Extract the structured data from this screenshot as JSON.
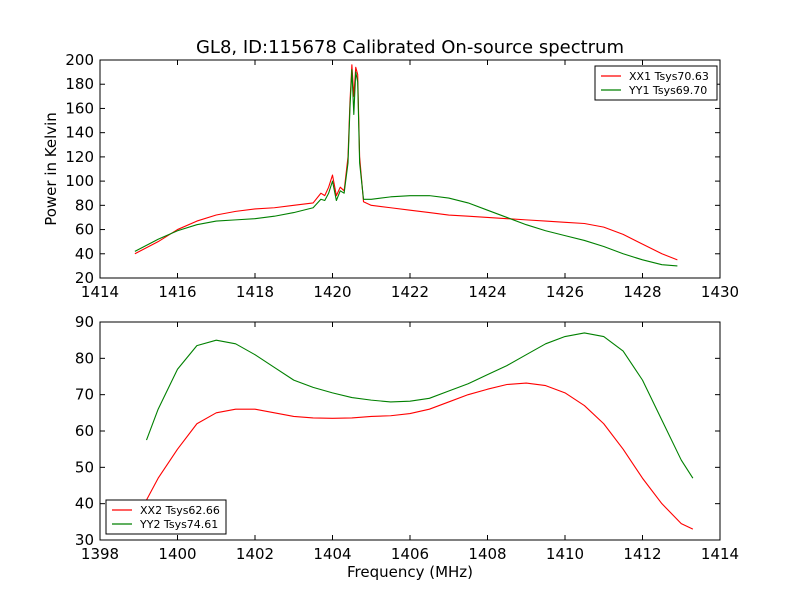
{
  "title": "GL8, ID:115678 Calibrated On-source spectrum",
  "chart_data": [
    {
      "type": "line",
      "title": "GL8, ID:115678 Calibrated On-source spectrum",
      "xlabel": "",
      "ylabel": "Power in Kelvin",
      "xlim": [
        1414,
        1430
      ],
      "ylim": [
        20,
        200
      ],
      "xticks": [
        1414,
        1416,
        1418,
        1420,
        1422,
        1424,
        1426,
        1428,
        1430
      ],
      "yticks": [
        20,
        40,
        60,
        80,
        100,
        120,
        140,
        160,
        180,
        200
      ],
      "grid": false,
      "legend_position": "top-right",
      "series": [
        {
          "name": "XX1 Tsys70.63",
          "color": "#ff0000",
          "x": [
            1414.9,
            1415.5,
            1416.0,
            1416.5,
            1417.0,
            1417.5,
            1418.0,
            1418.5,
            1419.0,
            1419.5,
            1419.7,
            1419.8,
            1419.9,
            1420.0,
            1420.1,
            1420.2,
            1420.3,
            1420.4,
            1420.45,
            1420.5,
            1420.55,
            1420.6,
            1420.65,
            1420.7,
            1420.8,
            1421.0,
            1421.5,
            1422.0,
            1422.5,
            1423.0,
            1423.5,
            1424.0,
            1424.5,
            1425.0,
            1425.5,
            1426.0,
            1426.5,
            1427.0,
            1427.5,
            1428.0,
            1428.5,
            1428.9
          ],
          "y": [
            40,
            50,
            60,
            67,
            72,
            75,
            77,
            78,
            80,
            82,
            90,
            88,
            95,
            105,
            88,
            95,
            92,
            120,
            165,
            196,
            170,
            194,
            188,
            120,
            83,
            80,
            78,
            76,
            74,
            72,
            71,
            70,
            69,
            68,
            67,
            66,
            65,
            62,
            56,
            48,
            40,
            35
          ]
        },
        {
          "name": "YY1 Tsys69.70",
          "color": "#008000",
          "x": [
            1414.9,
            1415.5,
            1416.0,
            1416.5,
            1417.0,
            1417.5,
            1418.0,
            1418.5,
            1419.0,
            1419.5,
            1419.7,
            1419.8,
            1419.9,
            1420.0,
            1420.1,
            1420.2,
            1420.3,
            1420.4,
            1420.45,
            1420.5,
            1420.55,
            1420.6,
            1420.65,
            1420.7,
            1420.8,
            1421.0,
            1421.5,
            1422.0,
            1422.5,
            1423.0,
            1423.5,
            1424.0,
            1424.5,
            1425.0,
            1425.5,
            1426.0,
            1426.5,
            1427.0,
            1427.5,
            1428.0,
            1428.5,
            1428.9
          ],
          "y": [
            42,
            52,
            59,
            64,
            67,
            68,
            69,
            71,
            74,
            78,
            85,
            84,
            90,
            100,
            84,
            92,
            90,
            115,
            160,
            192,
            155,
            190,
            182,
            115,
            85,
            85,
            87,
            88,
            88,
            86,
            82,
            76,
            70,
            64,
            59,
            55,
            51,
            46,
            40,
            35,
            31,
            30
          ]
        }
      ]
    },
    {
      "type": "line",
      "title": "",
      "xlabel": "Frequency (MHz)",
      "ylabel": "",
      "xlim": [
        1398,
        1414
      ],
      "ylim": [
        30,
        90
      ],
      "xticks": [
        1398,
        1400,
        1402,
        1404,
        1406,
        1408,
        1410,
        1412,
        1414
      ],
      "yticks": [
        30,
        40,
        50,
        60,
        70,
        80,
        90
      ],
      "grid": false,
      "legend_position": "bottom-left",
      "series": [
        {
          "name": "XX2 Tsys62.66",
          "color": "#ff0000",
          "x": [
            1399.2,
            1399.5,
            1400.0,
            1400.5,
            1401.0,
            1401.5,
            1402.0,
            1402.5,
            1403.0,
            1403.5,
            1404.0,
            1404.5,
            1405.0,
            1405.5,
            1406.0,
            1406.5,
            1407.0,
            1407.5,
            1408.0,
            1408.5,
            1409.0,
            1409.5,
            1410.0,
            1410.5,
            1411.0,
            1411.5,
            1412.0,
            1412.5,
            1413.0,
            1413.3
          ],
          "y": [
            41,
            47,
            55,
            62,
            65,
            66,
            66,
            65,
            64,
            63.6,
            63.5,
            63.6,
            64,
            64.2,
            64.8,
            66,
            68,
            70,
            71.5,
            72.8,
            73.2,
            72.5,
            70.5,
            67,
            62,
            55,
            47,
            40,
            34.5,
            33
          ]
        },
        {
          "name": "YY2 Tsys74.61",
          "color": "#008000",
          "x": [
            1399.2,
            1399.5,
            1400.0,
            1400.5,
            1401.0,
            1401.5,
            1402.0,
            1402.5,
            1403.0,
            1403.5,
            1404.0,
            1404.5,
            1405.0,
            1405.5,
            1406.0,
            1406.5,
            1407.0,
            1407.5,
            1408.0,
            1408.5,
            1409.0,
            1409.5,
            1410.0,
            1410.5,
            1411.0,
            1411.5,
            1412.0,
            1412.5,
            1413.0,
            1413.3
          ],
          "y": [
            57.5,
            66,
            77,
            83.5,
            85,
            84,
            81,
            77.5,
            74,
            72,
            70.5,
            69.2,
            68.5,
            68,
            68.2,
            69,
            71,
            73,
            75.5,
            78,
            81,
            84,
            86,
            87,
            86,
            82,
            74,
            63,
            52,
            47
          ]
        }
      ]
    }
  ]
}
